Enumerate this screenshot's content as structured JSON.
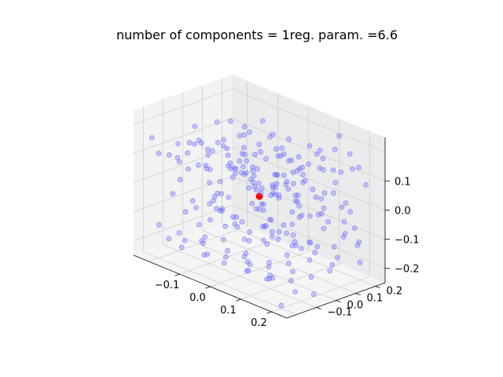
{
  "chart_data": {
    "type": "scatter",
    "projection": "3d",
    "title": "number of components = 1reg. param. =6.6",
    "xlabel": "",
    "ylabel": "",
    "zlabel": "",
    "grid": true,
    "x_ticks": [
      "−0.1",
      "0.0",
      "0.1",
      "0.2"
    ],
    "y_ticks": [
      "−0.1",
      "0.0",
      "0.1",
      "0.2"
    ],
    "z_ticks": [
      "0.1",
      "0.0",
      "−0.1",
      "−0.2"
    ],
    "colors": {
      "points": "#6a6aff",
      "center": "#ff0000",
      "pane": "#f2f2f2",
      "grid": "#d0d0d0"
    },
    "series": [
      {
        "values": [
          [
            -0.19,
            -0.25,
            0.18
          ],
          [
            -0.15,
            -0.18,
            0.16
          ],
          [
            -0.12,
            -0.22,
            0.12
          ],
          [
            -0.08,
            -0.17,
            0.19
          ],
          [
            -0.04,
            -0.21,
            0.14
          ],
          [
            0.0,
            -0.16,
            0.18
          ],
          [
            0.05,
            -0.2,
            0.15
          ],
          [
            0.09,
            -0.15,
            0.17
          ],
          [
            0.13,
            -0.19,
            0.13
          ],
          [
            0.17,
            -0.14,
            0.18
          ],
          [
            0.21,
            -0.18,
            0.16
          ],
          [
            -0.17,
            -0.1,
            0.1
          ],
          [
            -0.13,
            -0.06,
            0.12
          ],
          [
            -0.09,
            -0.11,
            0.08
          ],
          [
            -0.05,
            -0.07,
            0.11
          ],
          [
            -0.01,
            -0.12,
            0.09
          ],
          [
            0.03,
            -0.08,
            0.12
          ],
          [
            0.07,
            -0.04,
            0.07
          ],
          [
            0.11,
            -0.09,
            0.1
          ],
          [
            0.15,
            -0.05,
            0.08
          ],
          [
            0.19,
            -0.1,
            0.11
          ],
          [
            -0.18,
            0.02,
            0.06
          ],
          [
            -0.14,
            0.06,
            0.03
          ],
          [
            -0.1,
            0.01,
            0.05
          ],
          [
            -0.06,
            0.05,
            0.02
          ],
          [
            -0.02,
            0.0,
            0.04
          ],
          [
            0.02,
            0.04,
            0.01
          ],
          [
            0.06,
            0.08,
            0.05
          ],
          [
            0.1,
            0.03,
            0.02
          ],
          [
            0.14,
            0.07,
            0.04
          ],
          [
            0.18,
            0.02,
            0.01
          ],
          [
            -0.16,
            0.12,
            0.0
          ],
          [
            -0.12,
            0.16,
            -0.02
          ],
          [
            -0.08,
            0.11,
            -0.04
          ],
          [
            -0.04,
            0.15,
            -0.01
          ],
          [
            0.0,
            0.1,
            -0.03
          ],
          [
            0.04,
            0.14,
            -0.05
          ],
          [
            0.08,
            0.19,
            -0.02
          ],
          [
            0.12,
            0.13,
            -0.04
          ],
          [
            0.16,
            0.17,
            -0.01
          ],
          [
            0.2,
            0.12,
            -0.03
          ],
          [
            -0.19,
            0.22,
            -0.06
          ],
          [
            -0.15,
            0.18,
            -0.08
          ],
          [
            -0.11,
            0.23,
            -0.1
          ],
          [
            -0.07,
            0.19,
            -0.07
          ],
          [
            -0.03,
            0.24,
            -0.09
          ],
          [
            0.01,
            0.2,
            -0.11
          ],
          [
            0.05,
            0.25,
            -0.08
          ],
          [
            0.09,
            0.21,
            -0.1
          ],
          [
            0.13,
            0.26,
            -0.06
          ],
          [
            0.17,
            0.22,
            -0.09
          ],
          [
            0.21,
            0.18,
            -0.11
          ],
          [
            -0.18,
            -0.23,
            -0.12
          ],
          [
            -0.14,
            -0.19,
            -0.14
          ],
          [
            -0.1,
            -0.24,
            -0.16
          ],
          [
            -0.06,
            -0.2,
            -0.13
          ],
          [
            -0.02,
            -0.25,
            -0.15
          ],
          [
            0.02,
            -0.21,
            -0.17
          ],
          [
            0.06,
            -0.17,
            -0.14
          ],
          [
            0.1,
            -0.22,
            -0.16
          ],
          [
            0.14,
            -0.18,
            -0.18
          ],
          [
            0.18,
            -0.23,
            -0.15
          ],
          [
            -0.16,
            -0.13,
            -0.19
          ],
          [
            -0.12,
            -0.09,
            -0.17
          ],
          [
            -0.08,
            -0.14,
            -0.2
          ],
          [
            -0.04,
            -0.1,
            -0.18
          ],
          [
            0.0,
            -0.06,
            -0.21
          ],
          [
            0.04,
            -0.11,
            -0.19
          ],
          [
            0.08,
            -0.07,
            -0.22
          ],
          [
            0.12,
            -0.12,
            -0.2
          ],
          [
            0.16,
            -0.08,
            -0.17
          ],
          [
            0.2,
            -0.13,
            -0.21
          ],
          [
            -0.17,
            -0.02,
            -0.23
          ],
          [
            -0.13,
            0.02,
            -0.21
          ],
          [
            -0.09,
            -0.03,
            -0.24
          ],
          [
            -0.05,
            0.01,
            -0.22
          ],
          [
            -0.01,
            -0.04,
            -0.25
          ],
          [
            0.03,
            0.0,
            -0.23
          ],
          [
            0.07,
            0.04,
            -0.21
          ],
          [
            0.11,
            -0.01,
            -0.24
          ],
          [
            0.15,
            0.03,
            -0.22
          ],
          [
            0.19,
            -0.02,
            -0.25
          ],
          [
            -0.18,
            0.09,
            -0.15
          ],
          [
            -0.14,
            0.13,
            -0.18
          ],
          [
            -0.1,
            0.08,
            -0.21
          ],
          [
            -0.06,
            0.12,
            -0.16
          ],
          [
            -0.02,
            0.07,
            -0.19
          ],
          [
            0.02,
            0.11,
            -0.22
          ],
          [
            0.06,
            0.16,
            -0.17
          ],
          [
            0.1,
            0.1,
            -0.2
          ],
          [
            0.14,
            0.14,
            -0.23
          ],
          [
            0.18,
            0.09,
            -0.18
          ],
          [
            -0.16,
            0.2,
            -0.24
          ],
          [
            -0.12,
            0.24,
            -0.19
          ],
          [
            -0.08,
            0.19,
            -0.22
          ],
          [
            -0.04,
            0.23,
            -0.17
          ],
          [
            0.0,
            0.18,
            -0.2
          ],
          [
            0.04,
            0.22,
            -0.23
          ],
          [
            0.08,
            0.17,
            -0.18
          ],
          [
            0.12,
            0.21,
            -0.21
          ],
          [
            0.16,
            0.25,
            -0.16
          ],
          [
            0.2,
            0.2,
            -0.19
          ],
          [
            -0.2,
            -0.05,
            0.02
          ],
          [
            -0.15,
            0.0,
            -0.08
          ],
          [
            -0.11,
            -0.15,
            -0.05
          ],
          [
            -0.07,
            0.03,
            0.13
          ],
          [
            -0.03,
            -0.18,
            0.03
          ],
          [
            0.01,
            0.07,
            0.15
          ],
          [
            0.05,
            -0.13,
            -0.1
          ],
          [
            0.09,
            0.06,
            0.16
          ],
          [
            0.13,
            -0.03,
            -0.07
          ],
          [
            0.17,
            0.15,
            0.12
          ],
          [
            0.21,
            -0.07,
            0.04
          ],
          [
            -0.19,
            0.15,
            0.14
          ],
          [
            -0.13,
            -0.2,
            0.05
          ],
          [
            -0.09,
            0.09,
            0.16
          ],
          [
            -0.05,
            -0.14,
            -0.03
          ],
          [
            -0.01,
            0.13,
            0.13
          ],
          [
            0.03,
            -0.24,
            0.08
          ],
          [
            0.07,
            0.2,
            0.14
          ],
          [
            0.11,
            -0.16,
            0.06
          ],
          [
            0.15,
            0.24,
            0.1
          ],
          [
            0.19,
            -0.11,
            -0.06
          ],
          [
            -0.17,
            0.05,
            0.17
          ],
          [
            -0.11,
            0.17,
            0.09
          ],
          [
            -0.07,
            -0.23,
            0.01
          ],
          [
            -0.03,
            0.21,
            0.06
          ],
          [
            0.01,
            -0.09,
            0.17
          ],
          [
            0.05,
            0.06,
            -0.12
          ],
          [
            0.09,
            -0.12,
            0.02
          ],
          [
            0.13,
            0.09,
            0.18
          ],
          [
            0.17,
            -0.2,
            0.0
          ],
          [
            0.21,
            0.05,
            0.09
          ],
          [
            -0.18,
            -0.16,
            -0.03
          ],
          [
            -0.12,
            0.1,
            0.07
          ],
          [
            -0.08,
            -0.04,
            0.14
          ],
          [
            -0.04,
            0.08,
            -0.14
          ],
          [
            0.0,
            -0.2,
            0.1
          ],
          [
            0.04,
            0.17,
            0.03
          ],
          [
            0.08,
            -0.03,
            0.18
          ],
          [
            0.12,
            0.2,
            0.05
          ],
          [
            0.16,
            -0.15,
            0.11
          ],
          [
            0.2,
            0.23,
            0.07
          ],
          [
            -0.16,
            -0.08,
            0.13
          ],
          [
            -0.1,
            0.21,
            0.11
          ],
          [
            -0.06,
            -0.16,
            0.06
          ],
          [
            -0.02,
            0.03,
            -0.06
          ],
          [
            0.02,
            -0.15,
            0.14
          ],
          [
            0.06,
            0.23,
            0.1
          ],
          [
            0.1,
            -0.06,
            -0.09
          ],
          [
            0.14,
            0.0,
            0.16
          ],
          [
            0.18,
            -0.22,
            0.05
          ],
          [
            -0.2,
            0.1,
            -0.1
          ],
          [
            -0.14,
            -0.02,
            0.1
          ],
          [
            -0.1,
            0.14,
            -0.12
          ],
          [
            -0.06,
            -0.09,
            0.17
          ],
          [
            -0.02,
            0.18,
            0.07
          ],
          [
            0.02,
            -0.01,
            -0.14
          ],
          [
            0.06,
            0.1,
            0.09
          ],
          [
            0.1,
            -0.18,
            0.12
          ],
          [
            0.14,
            0.21,
            -0.13
          ],
          [
            0.18,
            -0.06,
            0.14
          ],
          [
            -0.19,
            -0.12,
            0.08
          ],
          [
            -0.15,
            0.24,
            0.03
          ],
          [
            -0.11,
            -0.01,
            0.15
          ],
          [
            -0.07,
            0.13,
            -0.09
          ],
          [
            -0.03,
            -0.11,
            0.01
          ],
          [
            0.01,
            0.24,
            0.12
          ],
          [
            0.05,
            -0.07,
            0.05
          ],
          [
            0.09,
            0.12,
            -0.15
          ],
          [
            0.13,
            -0.24,
            0.09
          ],
          [
            0.17,
            0.06,
            0.15
          ],
          [
            0.21,
            -0.16,
            -0.04
          ],
          [
            -0.17,
            0.19,
            0.12
          ],
          [
            -0.13,
            -0.05,
            -0.07
          ],
          [
            -0.09,
            0.04,
            0.16
          ],
          [
            -0.05,
            -0.19,
            0.12
          ],
          [
            -0.01,
            0.22,
            -0.13
          ],
          [
            0.03,
            -0.05,
            0.07
          ],
          [
            0.07,
            0.0,
            0.17
          ],
          [
            0.11,
            0.16,
            0.02
          ],
          [
            0.15,
            -0.1,
            0.13
          ],
          [
            0.19,
            0.14,
            -0.08
          ],
          [
            -0.2,
            -0.2,
            0.11
          ],
          [
            -0.16,
            0.05,
            -0.13
          ],
          [
            -0.12,
            -0.12,
            0.17
          ],
          [
            -0.08,
            0.25,
            0.05
          ],
          [
            -0.04,
            -0.02,
            0.09
          ],
          [
            0.0,
            0.15,
            0.16
          ],
          [
            0.04,
            -0.18,
            -0.01
          ],
          [
            0.08,
            0.08,
            0.11
          ],
          [
            0.12,
            -0.1,
            0.15
          ],
          [
            0.16,
            0.19,
            0.0
          ],
          [
            0.2,
            -0.04,
            0.12
          ],
          [
            -0.18,
            0.07,
            0.09
          ],
          [
            -0.14,
            -0.24,
            0.14
          ],
          [
            -0.1,
            0.19,
            0.04
          ],
          [
            -0.06,
            -0.08,
            -0.11
          ],
          [
            -0.02,
            0.1,
            0.18
          ],
          [
            0.02,
            -0.22,
            0.02
          ],
          [
            0.06,
            0.03,
            -0.08
          ],
          [
            0.1,
            0.22,
            0.08
          ],
          [
            0.14,
            -0.14,
            0.17
          ],
          [
            0.18,
            0.1,
            -0.12
          ],
          [
            -0.17,
            -0.11,
            -0.1
          ],
          [
            -0.13,
            0.22,
            0.15
          ],
          [
            -0.09,
            -0.17,
            0.11
          ],
          [
            -0.05,
            0.17,
            0.01
          ],
          [
            -0.01,
            -0.05,
            0.13
          ],
          [
            0.03,
            0.12,
            -0.07
          ],
          [
            0.07,
            -0.2,
            0.16
          ],
          [
            0.11,
            0.05,
            0.11
          ],
          [
            0.15,
            -0.02,
            -0.11
          ],
          [
            0.19,
            0.21,
            0.13
          ],
          [
            -0.15,
            0.1,
            -0.16
          ],
          [
            -0.05,
            0.0,
            0.19
          ],
          [
            0.05,
            -0.1,
            0.19
          ],
          [
            0.15,
            0.15,
            0.19
          ],
          [
            -0.1,
            -0.2,
            0.19
          ],
          [
            0.1,
            0.25,
            0.19
          ],
          [
            0.0,
            0.05,
            -0.24
          ],
          [
            0.2,
            -0.2,
            -0.24
          ],
          [
            -0.2,
            0.2,
            -0.24
          ],
          [
            0.08,
            -0.25,
            0.0
          ],
          [
            -0.05,
            0.25,
            0.0
          ],
          [
            0.21,
            0.0,
            -0.02
          ],
          [
            -0.21,
            0.0,
            0.15
          ],
          [
            0.0,
            0.25,
            0.05
          ],
          [
            0.0,
            -0.25,
            -0.02
          ],
          [
            0.12,
            0.12,
            0.12
          ],
          [
            -0.12,
            -0.12,
            -0.12
          ],
          [
            0.12,
            -0.12,
            0.12
          ],
          [
            -0.12,
            0.12,
            0.0
          ],
          [
            0.06,
            -0.06,
            -0.06
          ],
          [
            -0.06,
            0.06,
            0.06
          ],
          [
            0.18,
            0.18,
            0.18
          ],
          [
            -0.18,
            -0.18,
            -0.18
          ],
          [
            0.18,
            -0.18,
            0.0
          ],
          [
            -0.18,
            0.18,
            0.0
          ],
          [
            0.09,
            0.0,
            0.09
          ]
        ]
      },
      {
        "values": [
          [
            0.0,
            0.0,
            0.0
          ]
        ]
      }
    ]
  }
}
